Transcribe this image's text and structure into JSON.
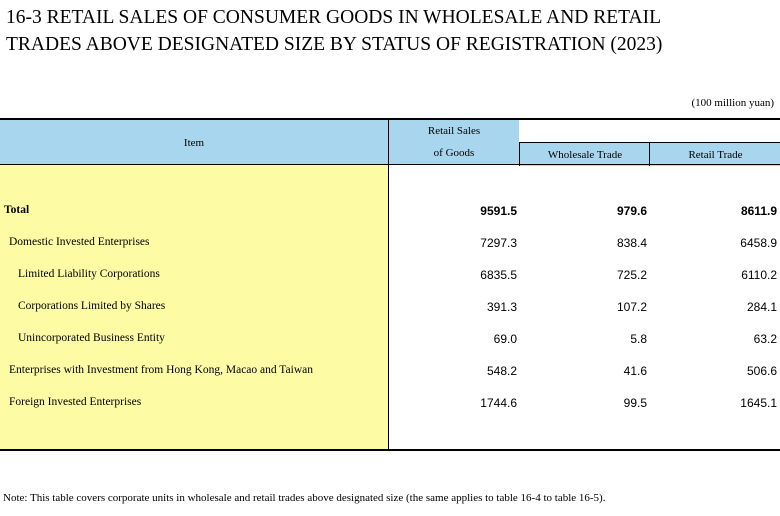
{
  "title_line1": "16-3  RETAIL SALES OF CONSUMER GOODS IN WHOLESALE AND RETAIL",
  "title_line2": "TRADES ABOVE DESIGNATED SIZE BY  STATUS OF REGISTRATION (2023)",
  "unit": "(100 million yuan)",
  "header": {
    "item": "Item",
    "retail_sales_line1": "Retail Sales",
    "retail_sales_line2": "of Goods",
    "wholesale": "Wholesale Trade",
    "retail": "Retail Trade"
  },
  "rows": [
    {
      "label": "Total",
      "retail_sales": "9591.5",
      "wholesale": "979.6",
      "retail": "8611.9"
    },
    {
      "label": "Domestic Invested Enterprises",
      "retail_sales": "7297.3",
      "wholesale": "838.4",
      "retail": "6458.9"
    },
    {
      "label": "Limited Liability Corporations",
      "retail_sales": "6835.5",
      "wholesale": "725.2",
      "retail": "6110.2"
    },
    {
      "label": "Corporations Limited by Shares",
      "retail_sales": "391.3",
      "wholesale": "107.2",
      "retail": "284.1"
    },
    {
      "label": "Unincorporated Business Entity",
      "retail_sales": "69.0",
      "wholesale": "5.8",
      "retail": "63.2"
    },
    {
      "label": "Enterprises with Investment from Hong Kong, Macao and Taiwan",
      "retail_sales": "548.2",
      "wholesale": "41.6",
      "retail": "506.6"
    },
    {
      "label": "Foreign Invested Enterprises",
      "retail_sales": "1744.6",
      "wholesale": "99.5",
      "retail": "1645.1"
    }
  ],
  "note": "Note: This table covers corporate units in wholesale and retail trades above designated size (the same applies to table 16-4 to table 16-5).",
  "colors": {
    "header_bg": "#a9d6ef",
    "item_col_bg": "#fdfca5"
  }
}
